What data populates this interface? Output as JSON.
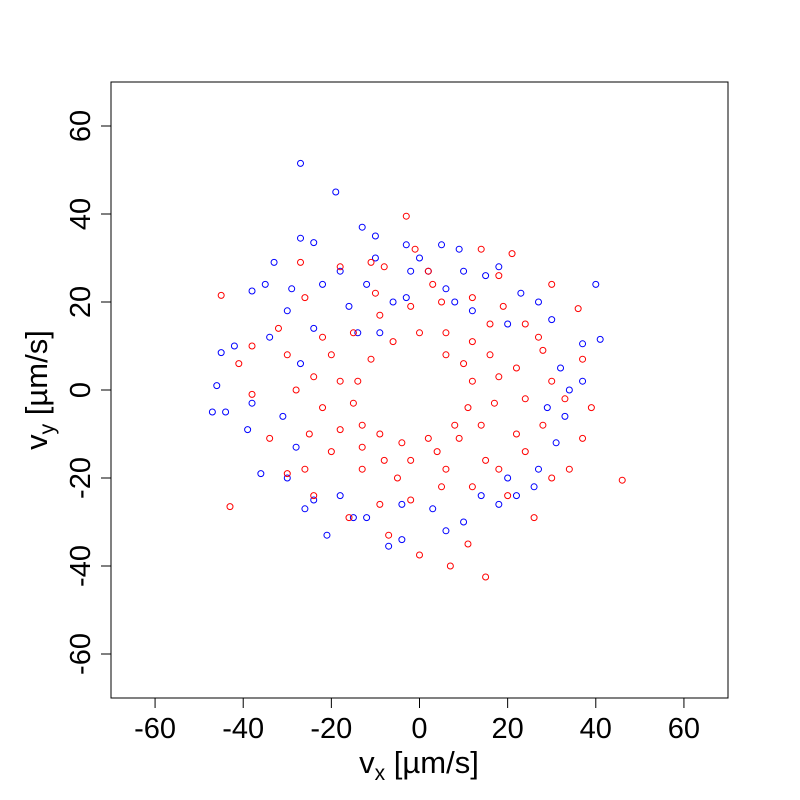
{
  "chart_data": {
    "type": "scatter",
    "title": "",
    "xlabel": {
      "base": "v",
      "sub": "x",
      "unit": " [µm/s]"
    },
    "ylabel": {
      "base": "v",
      "sub": "y",
      "unit": " [µm/s]"
    },
    "xlim": [
      -70,
      70
    ],
    "ylim": [
      -70,
      70
    ],
    "x_ticks": [
      -60,
      -40,
      -20,
      0,
      20,
      40,
      60
    ],
    "y_ticks": [
      -60,
      -40,
      -20,
      0,
      20,
      40,
      60
    ],
    "grid": false,
    "marker": "open-circle",
    "series": [
      {
        "color": "#0000ff",
        "points": [
          [
            -27,
            51.5
          ],
          [
            -19,
            45
          ],
          [
            -45,
            8.5
          ],
          [
            -46,
            1
          ],
          [
            -47,
            -5
          ],
          [
            -44,
            -5
          ],
          [
            -42,
            10
          ],
          [
            -38,
            22.5
          ],
          [
            -35,
            24
          ],
          [
            -33,
            29
          ],
          [
            -29,
            23
          ],
          [
            -27,
            34.5
          ],
          [
            -24,
            33.5
          ],
          [
            -13,
            37
          ],
          [
            -10,
            35
          ],
          [
            -3,
            33
          ],
          [
            5,
            33
          ],
          [
            9,
            32
          ],
          [
            40,
            24
          ],
          [
            41,
            11.5
          ],
          [
            37,
            10.5
          ],
          [
            37,
            2
          ],
          [
            33,
            -6
          ],
          [
            31,
            -12
          ],
          [
            26,
            -22
          ],
          [
            22,
            -24
          ],
          [
            18,
            -26
          ],
          [
            10,
            -30
          ],
          [
            6,
            -32
          ],
          [
            -4,
            -34
          ],
          [
            -7,
            -35.5
          ],
          [
            -12,
            -29
          ],
          [
            -15,
            -29
          ],
          [
            -21,
            -33
          ],
          [
            -26,
            -27
          ],
          [
            -30,
            -20
          ],
          [
            -36,
            -19
          ],
          [
            -39,
            -9
          ],
          [
            -38,
            -3
          ],
          [
            -34,
            12
          ],
          [
            -30,
            18
          ],
          [
            -22,
            24
          ],
          [
            -18,
            27
          ],
          [
            -10,
            30
          ],
          [
            0,
            30
          ],
          [
            -2,
            27
          ],
          [
            2,
            27
          ],
          [
            10,
            27
          ],
          [
            15,
            26
          ],
          [
            18,
            28
          ],
          [
            23,
            22
          ],
          [
            27,
            20
          ],
          [
            30,
            16
          ],
          [
            32,
            5
          ],
          [
            34,
            0
          ],
          [
            29,
            -4
          ],
          [
            27,
            -18
          ],
          [
            20,
            -20
          ],
          [
            14,
            -24
          ],
          [
            3,
            -27
          ],
          [
            -4,
            -26
          ],
          [
            -18,
            -24
          ],
          [
            -24,
            -25
          ],
          [
            -28,
            -13
          ],
          [
            -31,
            -6
          ],
          [
            -27,
            6
          ],
          [
            -24,
            14
          ],
          [
            -16,
            19
          ],
          [
            -12,
            24
          ],
          [
            -9,
            13
          ],
          [
            -14,
            13
          ],
          [
            -6,
            20
          ],
          [
            6,
            23
          ],
          [
            12,
            18
          ],
          [
            20,
            15
          ],
          [
            -3,
            21
          ],
          [
            8,
            20
          ]
        ]
      },
      {
        "color": "#ff0000",
        "points": [
          [
            -3,
            39.5
          ],
          [
            -27,
            29
          ],
          [
            -11,
            29
          ],
          [
            -1,
            32
          ],
          [
            14,
            32
          ],
          [
            21,
            31
          ],
          [
            -45,
            21.5
          ],
          [
            -43,
            -26.5
          ],
          [
            46,
            -20.5
          ],
          [
            15,
            -42.5
          ],
          [
            7,
            -40
          ],
          [
            0,
            -37.5
          ],
          [
            -7,
            -33
          ],
          [
            11,
            -35
          ],
          [
            26,
            -29
          ],
          [
            30,
            -20
          ],
          [
            34,
            -18
          ],
          [
            37,
            -11
          ],
          [
            39,
            -4
          ],
          [
            37,
            7
          ],
          [
            36,
            18.5
          ],
          [
            30,
            24
          ],
          [
            18,
            26
          ],
          [
            2,
            27
          ],
          [
            -8,
            28
          ],
          [
            -18,
            28
          ],
          [
            -26,
            21
          ],
          [
            -32,
            14
          ],
          [
            -38,
            10
          ],
          [
            -41,
            6
          ],
          [
            -38,
            -1
          ],
          [
            -34,
            -11
          ],
          [
            -30,
            -19
          ],
          [
            -24,
            -24
          ],
          [
            -16,
            -29
          ],
          [
            -9,
            -26
          ],
          [
            -2,
            -25
          ],
          [
            5,
            -22
          ],
          [
            12,
            -22
          ],
          [
            18,
            -18
          ],
          [
            24,
            -14
          ],
          [
            28,
            -8
          ],
          [
            30,
            2
          ],
          [
            28,
            9
          ],
          [
            24,
            15
          ],
          [
            19,
            19
          ],
          [
            12,
            21
          ],
          [
            5,
            20
          ],
          [
            -2,
            19
          ],
          [
            -9,
            17
          ],
          [
            -15,
            13
          ],
          [
            -20,
            8
          ],
          [
            -24,
            3
          ],
          [
            -22,
            -4
          ],
          [
            -18,
            -9
          ],
          [
            -13,
            -13
          ],
          [
            -8,
            -16
          ],
          [
            -2,
            -16
          ],
          [
            4,
            -14
          ],
          [
            9,
            -11
          ],
          [
            14,
            -8
          ],
          [
            17,
            -3
          ],
          [
            18,
            3
          ],
          [
            16,
            8
          ],
          [
            12,
            11
          ],
          [
            6,
            13
          ],
          [
            0,
            13
          ],
          [
            -6,
            11
          ],
          [
            -11,
            7
          ],
          [
            -14,
            2
          ],
          [
            -15,
            -3
          ],
          [
            -13,
            -8
          ],
          [
            -9,
            -10
          ],
          [
            -4,
            -12
          ],
          [
            2,
            -11
          ],
          [
            8,
            -8
          ],
          [
            11,
            -4
          ],
          [
            12,
            2
          ],
          [
            10,
            6
          ],
          [
            6,
            8
          ],
          [
            -20,
            -14
          ],
          [
            -25,
            -10
          ],
          [
            -18,
            2
          ],
          [
            -22,
            12
          ],
          [
            -10,
            22
          ],
          [
            3,
            24
          ],
          [
            16,
            15
          ],
          [
            22,
            5
          ],
          [
            24,
            -2
          ],
          [
            22,
            -10
          ],
          [
            15,
            -16
          ],
          [
            6,
            -18
          ],
          [
            -5,
            -20
          ],
          [
            -13,
            -18
          ],
          [
            -28,
            0
          ],
          [
            -30,
            8
          ],
          [
            -26,
            -18
          ],
          [
            20,
            -24
          ],
          [
            27,
            12
          ],
          [
            33,
            -2
          ]
        ]
      }
    ]
  }
}
